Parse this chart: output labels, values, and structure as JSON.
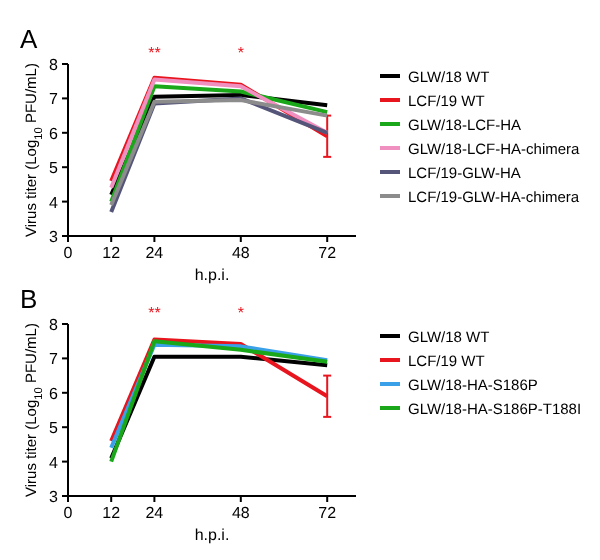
{
  "chart_data": [
    {
      "type": "line",
      "title": "A",
      "xlabel": "h.p.i.",
      "ylabel": "Virus titer (Log$_{10}$ PFU/mL)",
      "x": [
        12,
        24,
        48,
        72
      ],
      "xlim": [
        0,
        80
      ],
      "xticks": [
        0,
        12,
        24,
        48,
        72
      ],
      "ylim": [
        3,
        8
      ],
      "yticks": [
        3,
        4,
        5,
        6,
        7,
        8
      ],
      "legend": "right",
      "marker": "none",
      "line_style": "solid",
      "annotations": [
        "**",
        "*"
      ],
      "series": [
        {
          "name": "GLW/18 WT",
          "color": "#000000",
          "values": [
            4.2,
            7.05,
            7.1,
            6.8
          ]
        },
        {
          "name": "LCF/19 WT",
          "color": "#e8141e",
          "values": [
            4.6,
            7.6,
            7.4,
            5.9
          ],
          "errors": [
            null,
            null,
            null,
            0.6
          ]
        },
        {
          "name": "GLW/18-LCF-HA",
          "color": "#1aa81a",
          "values": [
            4.0,
            7.35,
            7.2,
            6.6
          ]
        },
        {
          "name": "GLW/18-LCF-HA-chimera",
          "color": "#f090c0",
          "values": [
            4.4,
            7.55,
            7.35,
            6.0
          ]
        },
        {
          "name": "LCF/19-GLW-HA",
          "color": "#55557a",
          "values": [
            3.7,
            6.85,
            7.0,
            6.0
          ]
        },
        {
          "name": "LCF/19-GLW-HA-chimera",
          "color": "#8c8c8c",
          "values": [
            3.9,
            6.9,
            6.95,
            6.5
          ]
        }
      ]
    },
    {
      "type": "line",
      "title": "B",
      "xlabel": "h.p.i.",
      "ylabel": "Virus titer (Log$_{10}$ PFU/mL)",
      "x": [
        12,
        24,
        48,
        72
      ],
      "xlim": [
        0,
        80
      ],
      "xticks": [
        0,
        12,
        24,
        48,
        72
      ],
      "ylim": [
        3,
        8
      ],
      "yticks": [
        3,
        4,
        5,
        6,
        7,
        8
      ],
      "legend": "right",
      "marker": "none",
      "line_style": "solid",
      "annotations": [
        "**",
        "*"
      ],
      "series": [
        {
          "name": "GLW/18 WT",
          "color": "#000000",
          "values": [
            4.1,
            7.05,
            7.05,
            6.8
          ]
        },
        {
          "name": "LCF/19 WT",
          "color": "#e8141e",
          "values": [
            4.6,
            7.55,
            7.42,
            5.9
          ],
          "errors": [
            null,
            null,
            null,
            0.6
          ]
        },
        {
          "name": "GLW/18-HA-S186P",
          "color": "#3aa0e8",
          "values": [
            4.4,
            7.4,
            7.35,
            6.95
          ]
        },
        {
          "name": "GLW/18-HA-S186P-T188I",
          "color": "#1aa81a",
          "values": [
            4.0,
            7.5,
            7.25,
            6.9
          ]
        }
      ]
    }
  ]
}
